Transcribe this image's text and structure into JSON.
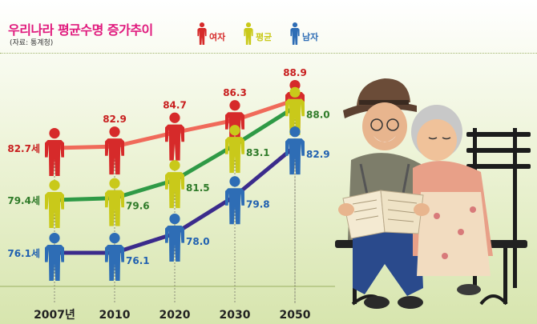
{
  "title": "우리나라 평균수명 증가추이",
  "source": "(자료: 통계청)",
  "colors": {
    "female": "#d62a2a",
    "average": "#c9c91a",
    "male": "#2e6db5",
    "line_female": "#f06a5a",
    "line_average": "#2f9a46",
    "line_male": "#3b2b8c",
    "label_female": "#c81e1e",
    "label_average": "#2e7a28",
    "label_male": "#2060b0"
  },
  "legend": [
    {
      "name": "여자",
      "icon": "person-icon-red"
    },
    {
      "name": "평균",
      "icon": "person-icon-yellow"
    },
    {
      "name": "남자",
      "icon": "person-icon-blue"
    }
  ],
  "chart_data": {
    "type": "line",
    "categories": [
      "2007년",
      "2010",
      "2020",
      "2030",
      "2050"
    ],
    "series": [
      {
        "name": "여자",
        "values": [
          82.7,
          82.9,
          84.7,
          86.3,
          88.9
        ],
        "labels": [
          "82.7세",
          "82.9",
          "84.7",
          "86.3",
          "88.9"
        ]
      },
      {
        "name": "평균",
        "values": [
          79.4,
          79.6,
          81.5,
          83.1,
          88.0
        ],
        "labels": [
          "79.4세",
          "79.6",
          "81.5",
          "83.1",
          "88.0"
        ]
      },
      {
        "name": "남자",
        "values": [
          76.1,
          76.1,
          78.0,
          79.8,
          82.9
        ],
        "labels": [
          "76.1세",
          "76.1",
          "78.0",
          "79.8",
          "82.9"
        ]
      }
    ],
    "legend_position": "top-right",
    "grid": false
  }
}
